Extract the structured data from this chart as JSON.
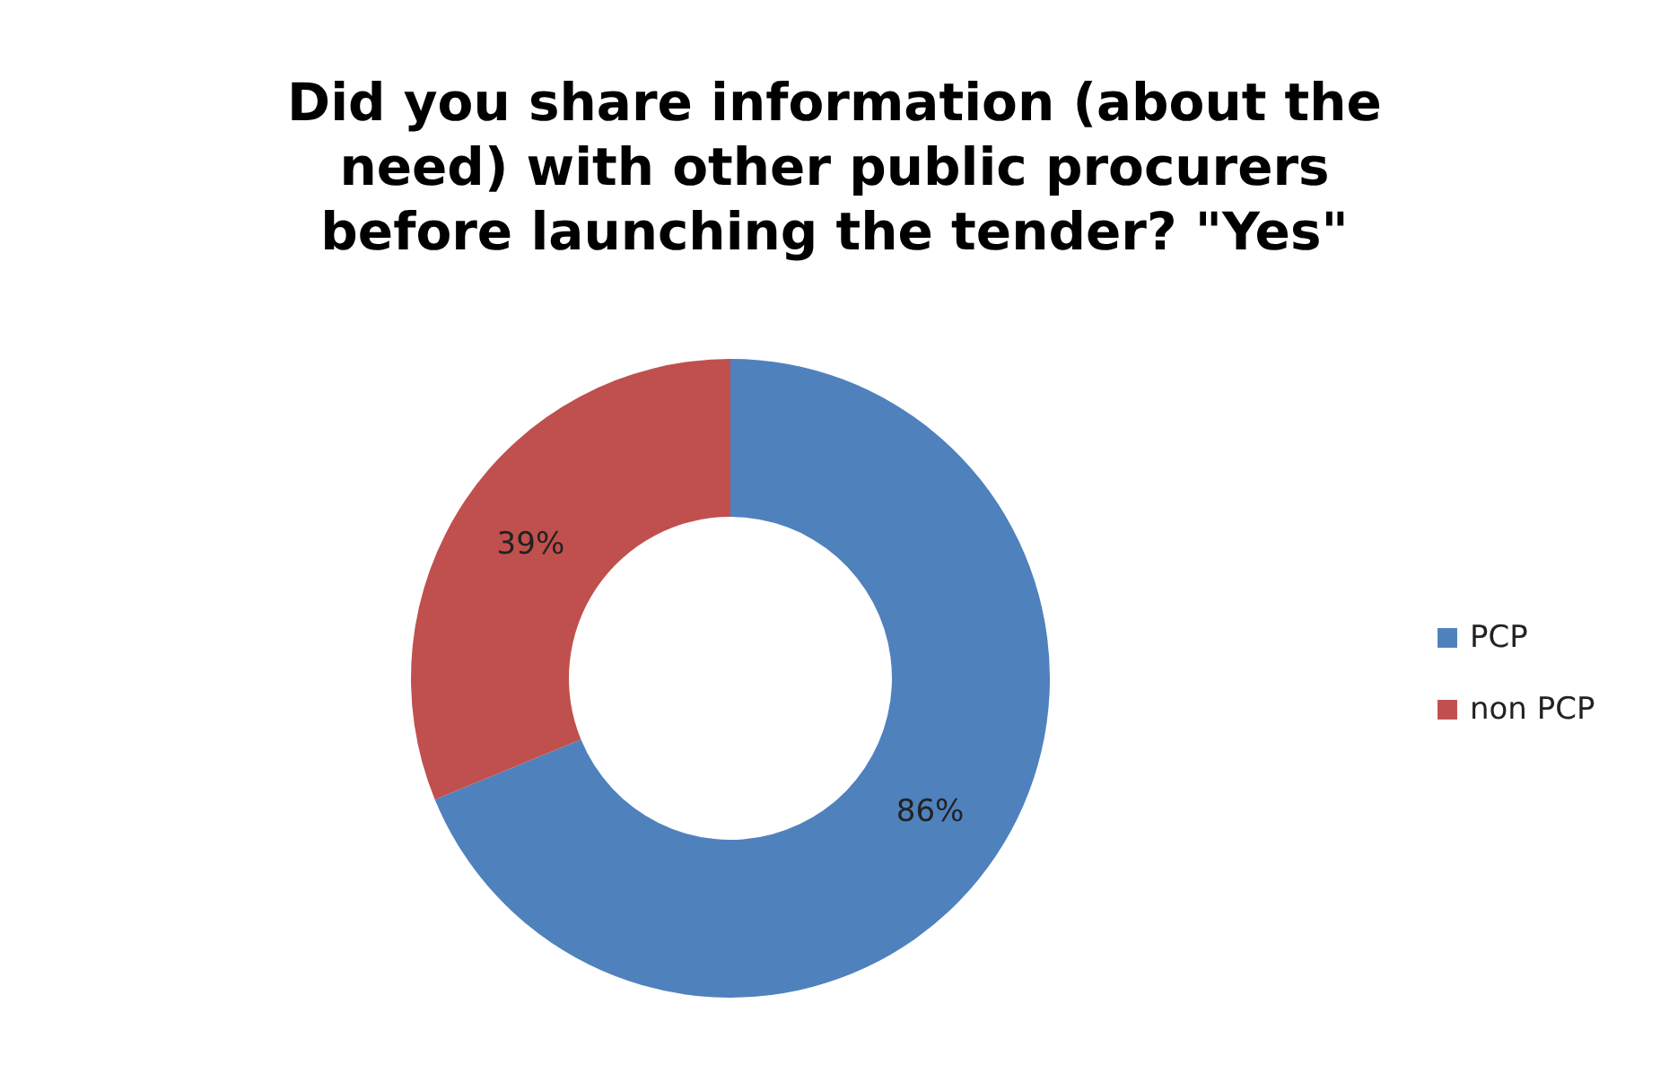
{
  "chart_data": {
    "type": "donut",
    "title": "Did you share information (about the need) with other public procurers before  launching the tender? \"Yes\"",
    "categories": [
      "PCP",
      "non PCP"
    ],
    "values": [
      86,
      39
    ],
    "colors": [
      "#4f81bd",
      "#c0504d"
    ],
    "value_labels": [
      "86%",
      "39%"
    ],
    "legend": "right"
  }
}
